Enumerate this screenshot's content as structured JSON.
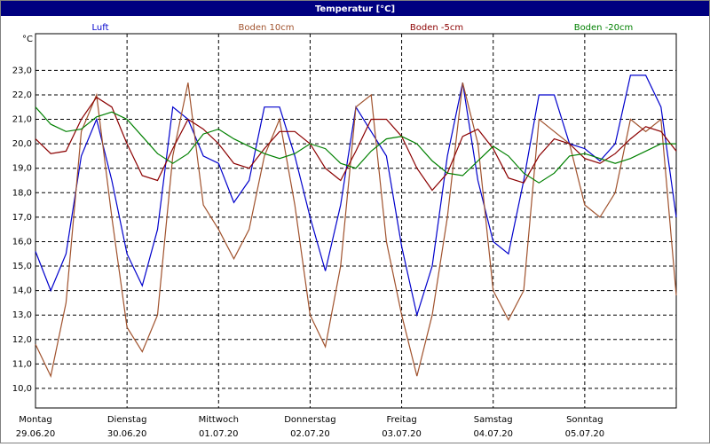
{
  "chart_data": {
    "type": "line",
    "title": "Temperatur [°C]",
    "y_unit": "°C",
    "x_labels": [
      {
        "day": "Montag",
        "date": "29.06.20"
      },
      {
        "day": "Dienstag",
        "date": "30.06.20"
      },
      {
        "day": "Mittwoch",
        "date": "01.07.20"
      },
      {
        "day": "Donnerstag",
        "date": "02.07.20"
      },
      {
        "day": "Freitag",
        "date": "03.07.20"
      },
      {
        "day": "Samstag",
        "date": "04.07.20"
      },
      {
        "day": "Sonntag",
        "date": "05.07.20"
      }
    ],
    "ylim": [
      9.2,
      24.5
    ],
    "yticks": [
      {
        "value": 10,
        "label": "10,0"
      },
      {
        "value": 11,
        "label": "11,0"
      },
      {
        "value": 12,
        "label": "12,0"
      },
      {
        "value": 13,
        "label": "13,0"
      },
      {
        "value": 14,
        "label": "14,0"
      },
      {
        "value": 15,
        "label": "15,0"
      },
      {
        "value": 16,
        "label": "16,0"
      },
      {
        "value": 17,
        "label": "17,0"
      },
      {
        "value": 18,
        "label": "18,0"
      },
      {
        "value": 19,
        "label": "19,0"
      },
      {
        "value": 20,
        "label": "20,0"
      },
      {
        "value": 21,
        "label": "21,0"
      },
      {
        "value": 22,
        "label": "22,0"
      },
      {
        "value": 23,
        "label": "23,0"
      }
    ],
    "grid": true,
    "series": [
      {
        "name": "Luft",
        "color": "#0000cc",
        "values": [
          15.6,
          14.0,
          15.5,
          19.5,
          21.0,
          18.5,
          15.5,
          14.2,
          16.5,
          21.5,
          21.0,
          19.5,
          19.2,
          17.6,
          18.5,
          21.5,
          21.5,
          19.5,
          17.0,
          14.8,
          17.5,
          21.5,
          20.5,
          19.5,
          15.8,
          13.0,
          15.0,
          19.5,
          22.5,
          18.5,
          16.0,
          15.5,
          18.5,
          22.0,
          22.0,
          20.0,
          19.8,
          19.3,
          20.0,
          22.8,
          22.8,
          21.5,
          17.0
        ]
      },
      {
        "name": "Boden 10cm",
        "color": "#a0522d",
        "values": [
          11.8,
          10.5,
          13.5,
          20.5,
          22.0,
          17.0,
          12.5,
          11.5,
          13.0,
          19.5,
          22.5,
          17.5,
          16.5,
          15.3,
          16.5,
          19.5,
          21.0,
          17.5,
          13.0,
          11.7,
          15.0,
          21.5,
          22.0,
          16.0,
          13.0,
          10.5,
          13.0,
          17.0,
          22.5,
          20.0,
          14.0,
          12.8,
          14.0,
          21.0,
          20.5,
          20.0,
          17.5,
          17.0,
          18.0,
          21.0,
          20.5,
          21.0,
          13.8
        ]
      },
      {
        "name": "Boden -5cm",
        "color": "#8b0000",
        "values": [
          20.2,
          19.6,
          19.7,
          21.0,
          21.9,
          21.5,
          20.0,
          18.7,
          18.5,
          19.8,
          21.0,
          20.6,
          20.0,
          19.2,
          19.0,
          19.8,
          20.5,
          20.5,
          20.0,
          19.0,
          18.5,
          19.7,
          21.0,
          21.0,
          20.3,
          19.0,
          18.1,
          18.8,
          20.3,
          20.6,
          19.8,
          18.6,
          18.4,
          19.5,
          20.2,
          20.0,
          19.4,
          19.2,
          19.6,
          20.2,
          20.7,
          20.5,
          19.7
        ]
      },
      {
        "name": "Boden -20cm",
        "color": "#008000",
        "values": [
          21.5,
          20.8,
          20.5,
          20.6,
          21.1,
          21.3,
          21.0,
          20.3,
          19.6,
          19.2,
          19.6,
          20.4,
          20.6,
          20.2,
          19.9,
          19.6,
          19.4,
          19.6,
          20.0,
          19.8,
          19.2,
          19.0,
          19.7,
          20.2,
          20.3,
          20.0,
          19.3,
          18.8,
          18.7,
          19.3,
          19.9,
          19.5,
          18.8,
          18.4,
          18.8,
          19.5,
          19.6,
          19.4,
          19.2,
          19.4,
          19.7,
          20.0,
          20.0
        ]
      }
    ]
  }
}
